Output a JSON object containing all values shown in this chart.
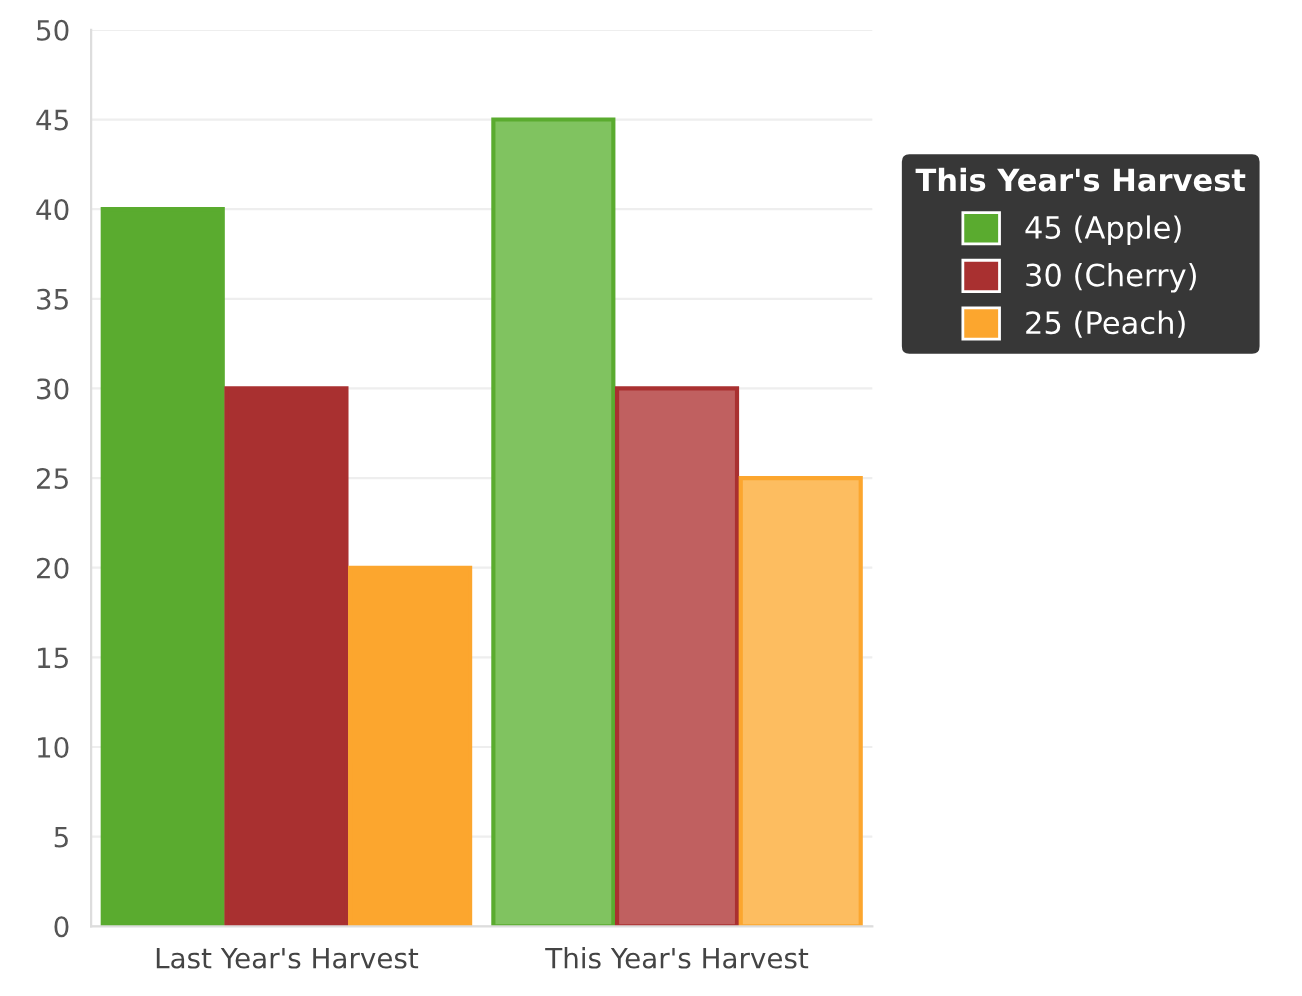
{
  "chart_data": {
    "type": "bar",
    "categories": [
      "Last Year's Harvest",
      "This Year's Harvest"
    ],
    "series": [
      {
        "name": "45 (Apple)",
        "color": "#5aab2f",
        "colors": [
          "#5aab2f",
          "#80c360"
        ],
        "values": [
          40,
          45
        ]
      },
      {
        "name": "30 (Cherry)",
        "color": "#a93030",
        "colors": [
          "#a93030",
          "#c06060"
        ],
        "values": [
          30,
          30
        ]
      },
      {
        "name": "25 (Peach)",
        "color": "#fca62e",
        "colors": [
          "#fca62e",
          "#fdbd60"
        ],
        "values": [
          20,
          25
        ]
      }
    ],
    "legend_title": "This Year's Harvest",
    "legend": "right",
    "ylim": [
      0,
      50
    ],
    "yticks": [
      0,
      5,
      10,
      15,
      20,
      25,
      30,
      35,
      40,
      45,
      50
    ],
    "grid": "y"
  }
}
